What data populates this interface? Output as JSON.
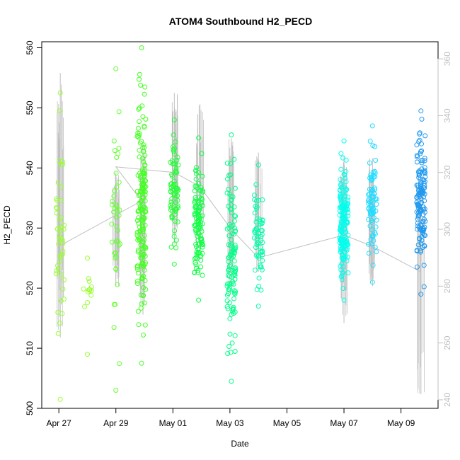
{
  "chart_data": {
    "type": "scatter",
    "title": "ATOM4 Southbound H2_PECD",
    "xlabel": "Date",
    "ylabel": "H2_PECD",
    "x_tick_labels": [
      "Apr 27",
      "Apr 29",
      "May 01",
      "May 03",
      "May 05",
      "May 07",
      "May 09"
    ],
    "x_tick_days": [
      0,
      2,
      4,
      6,
      8,
      10,
      12
    ],
    "xlim_days": [
      -0.6,
      13.3
    ],
    "ylim": [
      500,
      561
    ],
    "y_ticks": [
      500,
      510,
      520,
      530,
      540,
      550,
      560
    ],
    "y2_label": "",
    "y2_ticks": [
      240,
      260,
      280,
      300,
      320,
      340,
      360
    ],
    "y2lim": [
      237,
      366
    ],
    "grid": false,
    "legend": "none",
    "color_scale": [
      "#7cfc00",
      "#00ff00",
      "#00ff99",
      "#00ffff",
      "#1e90ff"
    ],
    "clusters": [
      {
        "day": 0.05,
        "y_min": 501.5,
        "y_max": 552.5,
        "count": 45,
        "color": "#99ff33"
      },
      {
        "day": 1.0,
        "y_min": 509,
        "y_max": 525,
        "count": 12,
        "color": "#99ff33"
      },
      {
        "day": 2.0,
        "y_min": 503,
        "y_max": 556.5,
        "count": 40,
        "color": "#66ff33"
      },
      {
        "day": 2.9,
        "y_min": 507.5,
        "y_max": 560,
        "count": 170,
        "color": "#44ff22"
      },
      {
        "day": 4.05,
        "y_min": 524,
        "y_max": 548,
        "count": 70,
        "color": "#22ff33"
      },
      {
        "day": 4.9,
        "y_min": 518,
        "y_max": 545,
        "count": 110,
        "color": "#11ff44"
      },
      {
        "day": 6.05,
        "y_min": 504.5,
        "y_max": 545.5,
        "count": 110,
        "color": "#00ff88"
      },
      {
        "day": 7.0,
        "y_min": 517,
        "y_max": 540.5,
        "count": 60,
        "color": "#00ffaa"
      },
      {
        "day": 10.0,
        "y_min": 518,
        "y_max": 544.5,
        "count": 160,
        "color": "#00ffee"
      },
      {
        "day": 11.0,
        "y_min": 521,
        "y_max": 547,
        "count": 80,
        "color": "#22ddff"
      },
      {
        "day": 12.7,
        "y_min": 519,
        "y_max": 549.5,
        "count": 140,
        "color": "#2299ee"
      }
    ],
    "secondary_series": {
      "name": "",
      "color": "#c0c0c0",
      "spikes": [
        {
          "day": 0.05,
          "y2_min": 262,
          "y2_max": 355
        },
        {
          "day": 2.0,
          "y2_min": 280,
          "y2_max": 320
        },
        {
          "day": 2.95,
          "y2_min": 270,
          "y2_max": 330
        },
        {
          "day": 4.05,
          "y2_min": 295,
          "y2_max": 348
        },
        {
          "day": 4.95,
          "y2_min": 293,
          "y2_max": 344
        },
        {
          "day": 6.05,
          "y2_min": 280,
          "y2_max": 332
        },
        {
          "day": 7.0,
          "y2_min": 285,
          "y2_max": 327
        },
        {
          "day": 10.0,
          "y2_min": 267,
          "y2_max": 326
        },
        {
          "day": 11.0,
          "y2_min": 280,
          "y2_max": 325
        },
        {
          "day": 12.7,
          "y2_min": 242,
          "y2_max": 312
        }
      ],
      "trend": [
        {
          "day": 0.0,
          "y2": 294
        },
        {
          "day": 2.9,
          "y2": 310
        },
        {
          "day": 2.0,
          "y2": 322
        },
        {
          "day": 4.05,
          "y2": 320
        },
        {
          "day": 4.95,
          "y2": 315
        },
        {
          "day": 6.05,
          "y2": 300
        },
        {
          "day": 7.0,
          "y2": 290
        },
        {
          "day": 10.0,
          "y2": 298
        },
        {
          "day": 11.0,
          "y2": 294
        },
        {
          "day": 12.7,
          "y2": 285
        }
      ]
    }
  }
}
